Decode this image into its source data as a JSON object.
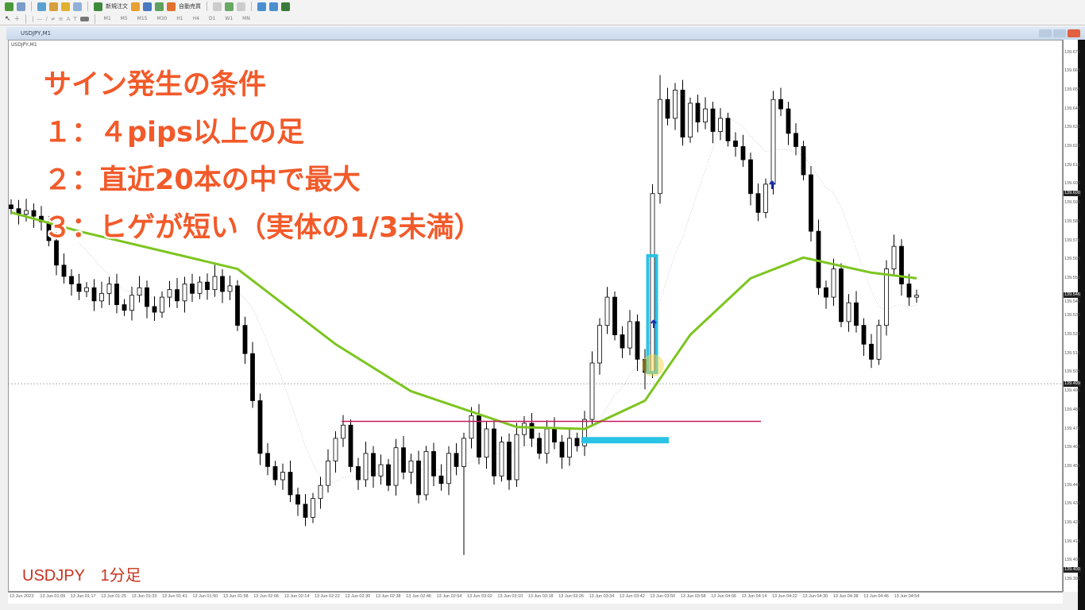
{
  "toolbar": {
    "new_order": "新規注文",
    "auto_trading": "自動売買",
    "timeframes": [
      "M1",
      "M5",
      "M15",
      "M30",
      "H1",
      "H4",
      "D1",
      "W1",
      "MN"
    ]
  },
  "window": {
    "title": "USDJPY,M1",
    "chart_label": "USDJPY,M1"
  },
  "overlay": {
    "title": "サイン発生の条件",
    "cond1": "１：４pips以上の足",
    "cond2": "２：直近20本の中で最大",
    "cond3": "３：ヒゲが短い（実体の1/3未満）",
    "footer": "USDJPY　1分足"
  },
  "price_axis": {
    "labels": [
      "139.675",
      "139.665",
      "139.655",
      "139.645",
      "139.635",
      "139.625",
      "139.615",
      "139.605",
      "139.595",
      "139.585",
      "139.575",
      "139.565",
      "139.555",
      "139.545",
      "139.535",
      "139.525",
      "139.515",
      "139.505",
      "139.495",
      "139.485",
      "139.475",
      "139.465",
      "139.455",
      "139.445",
      "139.435",
      "139.425",
      "139.415",
      "139.405",
      "139.395"
    ],
    "highlighted": [
      "139.600",
      "139.546",
      "139.499",
      "139.400"
    ]
  },
  "time_axis": {
    "labels": [
      "13 Jun 2023",
      "13 Jun 01:09",
      "13 Jun 01:17",
      "13 Jun 01:25",
      "13 Jun 01:33",
      "13 Jun 01:41",
      "13 Jun 01:50",
      "13 Jun 01:58",
      "13 Jun 02:06",
      "13 Jun 02:14",
      "13 Jun 02:22",
      "13 Jun 02:30",
      "13 Jun 02:38",
      "13 Jun 02:46",
      "13 Jun 02:54",
      "13 Jun 03:02",
      "13 Jun 03:10",
      "13 Jun 03:18",
      "13 Jun 03:26",
      "13 Jun 03:34",
      "13 Jun 03:42",
      "13 Jun 03:50",
      "13 Jun 03:58",
      "13 Jun 04:06",
      "13 Jun 04:14",
      "13 Jun 04:22",
      "13 Jun 04:30",
      "13 Jun 04:38",
      "13 Jun 04:46",
      "13 Jun 04:54"
    ]
  },
  "chart_data": {
    "type": "candlestick",
    "ylim": [
      139.395,
      139.675
    ],
    "closes": [
      139.592,
      139.589,
      139.591,
      139.588,
      139.585,
      139.575,
      139.562,
      139.556,
      139.552,
      139.548,
      139.55,
      139.543,
      139.547,
      139.552,
      139.541,
      139.538,
      139.546,
      139.55,
      139.54,
      139.537,
      139.545,
      139.549,
      139.543,
      139.552,
      139.547,
      139.553,
      139.549,
      139.556,
      139.548,
      139.551,
      139.53,
      139.515,
      139.49,
      139.462,
      139.455,
      139.448,
      139.452,
      139.44,
      139.435,
      139.428,
      139.438,
      139.445,
      139.458,
      139.47,
      139.477,
      139.455,
      139.448,
      139.462,
      139.45,
      139.456,
      139.445,
      139.465,
      139.452,
      139.458,
      139.44,
      139.463,
      139.45,
      139.446,
      139.462,
      139.455,
      139.47,
      139.482,
      139.46,
      139.475,
      139.45,
      139.468,
      139.448,
      139.472,
      139.478,
      139.47,
      139.462,
      139.475,
      139.468,
      139.46,
      139.47,
      139.466,
      139.48,
      139.51,
      139.53,
      139.545,
      139.525,
      139.518,
      139.532,
      139.512,
      139.505,
      139.6,
      139.65,
      139.64,
      139.655,
      139.63,
      139.648,
      139.638,
      139.645,
      139.633,
      139.64,
      139.628,
      139.625,
      139.618,
      139.6,
      139.59,
      139.605,
      139.65,
      139.645,
      139.632,
      139.625,
      139.61,
      139.58,
      139.55,
      139.545,
      139.56,
      139.532,
      139.542,
      139.53,
      139.52,
      139.512,
      139.53,
      139.56,
      139.572,
      139.552,
      139.545,
      139.546
    ],
    "wick_overrides": {
      "60": {
        "low": 139.408
      },
      "84": {
        "low": 139.496
      },
      "85": {
        "high": 139.605
      },
      "86": {
        "high": 139.663
      }
    },
    "ma_green": [
      [
        0,
        139.59
      ],
      [
        9,
        139.58
      ],
      [
        30,
        139.56
      ],
      [
        43,
        139.52
      ],
      [
        53,
        139.495
      ],
      [
        67,
        139.476
      ],
      [
        76,
        139.475
      ],
      [
        84,
        139.49
      ],
      [
        90,
        139.525
      ],
      [
        98,
        139.555
      ],
      [
        105,
        139.566
      ],
      [
        114,
        139.558
      ],
      [
        120,
        139.555
      ]
    ],
    "resistance_line": 139.479,
    "bid_line": 139.499,
    "signal_bar": {
      "index": 85,
      "from": 139.505,
      "to": 139.567
    },
    "target_zone": 139.469,
    "colors": {
      "ma": "#7cc520",
      "resistance": "#c2185b",
      "highlight": "#29c3e6",
      "arrow": "#1a2fb0",
      "marker": "#f5d54a"
    }
  }
}
